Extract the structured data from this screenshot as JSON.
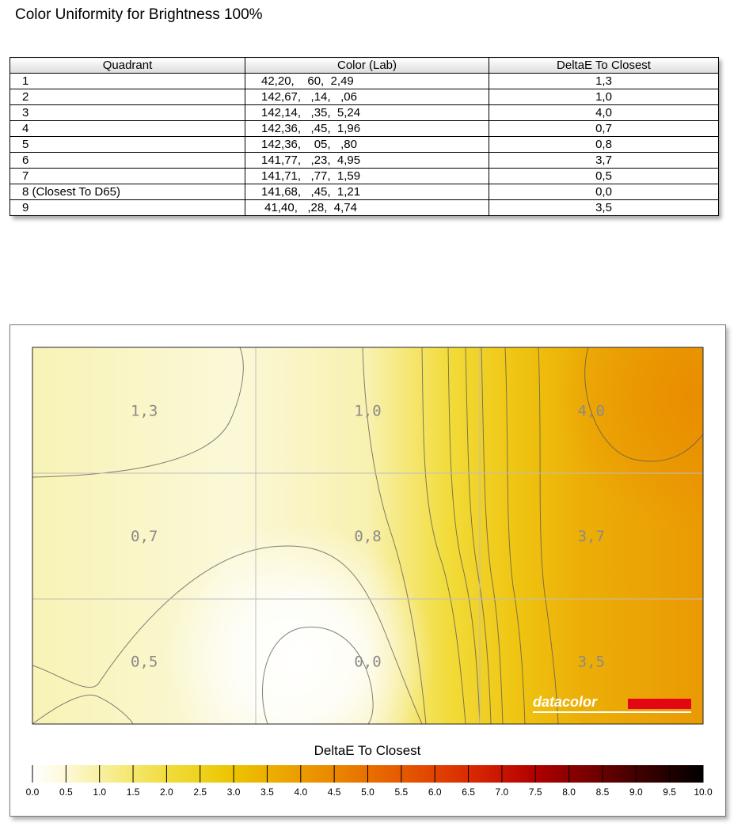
{
  "page": {
    "title": "Color Uniformity for Brightness 100%"
  },
  "table": {
    "headers": [
      "Quadrant",
      "Color (Lab)",
      "DeltaE To Closest"
    ],
    "rows": [
      [
        "1",
        "42,20,    60,  2,49",
        "1,3"
      ],
      [
        "2",
        "142,67,   ,14,   ,06",
        "1,0"
      ],
      [
        "3",
        "142,14,   ,35,  5,24",
        "4,0"
      ],
      [
        "4",
        "142,36,   ,45,  1,96",
        "0,7"
      ],
      [
        "5",
        "142,36,    05,   ,80",
        "0,8"
      ],
      [
        "6",
        "141,77,   ,23,  4,95",
        "3,7"
      ],
      [
        "7",
        "141,71,   ,77,  1,59",
        "0,5"
      ],
      [
        "8 (Closest To D65)",
        "141,68,   ,45,  1,21",
        "0,0"
      ],
      [
        "9",
        " 41,40,   ,28,  4,74",
        "3,5"
      ]
    ]
  },
  "chart_data": {
    "type": "heatmap",
    "title": "DeltaE To Closest",
    "grid": true,
    "rows": 3,
    "cols": 3,
    "values": [
      [
        1.3,
        1.0,
        4.0
      ],
      [
        0.7,
        0.8,
        3.7
      ],
      [
        0.5,
        0.0,
        3.5
      ]
    ],
    "cell_labels": [
      [
        "1,3",
        "1,0",
        "4,0"
      ],
      [
        "0,7",
        "0,8",
        "3,7"
      ],
      [
        "0,5",
        "0,0",
        "3,5"
      ]
    ],
    "colorbar": {
      "min": 0.0,
      "max": 10.0,
      "step": 0.5,
      "tick_labels": [
        "0.0",
        "0.5",
        "1.0",
        "1.5",
        "2.0",
        "2.5",
        "3.0",
        "3.5",
        "4.0",
        "4.5",
        "5.0",
        "5.5",
        "6.0",
        "6.5",
        "7.0",
        "7.5",
        "8.0",
        "8.5",
        "9.0",
        "9.5",
        "10.0"
      ],
      "colors": [
        "#ffffff",
        "#fdf9d6",
        "#f8f0a0",
        "#f4e76c",
        "#f1dc3d",
        "#eed21d",
        "#ecc300",
        "#ecb000",
        "#eb9c00",
        "#ea8700",
        "#e86f00",
        "#e55a00",
        "#e04300",
        "#da2b00",
        "#c91400",
        "#b00000",
        "#8c0000",
        "#680000",
        "#430000",
        "#220000",
        "#000000"
      ]
    },
    "brand": "datacolor",
    "brand_color": "#e30613"
  }
}
